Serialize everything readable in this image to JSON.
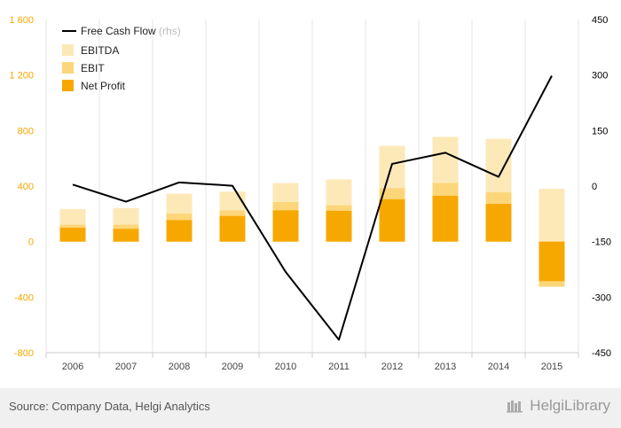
{
  "chart_data": {
    "type": "bar",
    "categories": [
      "2006",
      "2007",
      "2008",
      "2009",
      "2010",
      "2011",
      "2012",
      "2013",
      "2014",
      "2015"
    ],
    "series": [
      {
        "name": "EBITDA",
        "kind": "bar",
        "axis": "left",
        "color": "#fde9b8",
        "values": [
          235,
          242,
          345,
          360,
          422,
          448,
          690,
          755,
          740,
          380
        ]
      },
      {
        "name": "EBIT",
        "kind": "bar",
        "axis": "left",
        "color": "#fdd67a",
        "values": [
          122,
          122,
          202,
          225,
          285,
          262,
          385,
          422,
          355,
          -325
        ]
      },
      {
        "name": "Net Profit",
        "kind": "bar",
        "axis": "left",
        "color": "#f7a800",
        "values": [
          100,
          92,
          155,
          185,
          225,
          222,
          305,
          330,
          272,
          -285
        ]
      },
      {
        "name": "Free Cash Flow",
        "kind": "line",
        "axis": "right",
        "color": "#000000",
        "values": [
          4,
          -42,
          10,
          1,
          -232,
          -415,
          60,
          90,
          25,
          298
        ]
      }
    ],
    "legend": {
      "position": "top-left",
      "rhs_note": "(rhs)"
    },
    "left_axis": {
      "ylim": [
        -800,
        1600
      ],
      "ticks": [
        -800,
        -400,
        0,
        400,
        800,
        1200,
        1600
      ],
      "tick_labels": [
        "-800",
        "-400",
        "0",
        "400",
        "800",
        "1 200",
        "1 600"
      ],
      "color": "#f7a800"
    },
    "right_axis": {
      "ylim": [
        -450,
        450
      ],
      "ticks": [
        -450,
        -300,
        -150,
        0,
        150,
        300,
        450
      ],
      "tick_labels": [
        "-450",
        "-300",
        "-150",
        "0",
        "150",
        "300",
        "450"
      ],
      "color": "#000000"
    },
    "grid": "vertical",
    "title": "",
    "xlabel": "",
    "ylabel": ""
  },
  "footer": {
    "source": "Source: Company Data, Helgi Analytics",
    "brand": "HelgiLibrary"
  }
}
